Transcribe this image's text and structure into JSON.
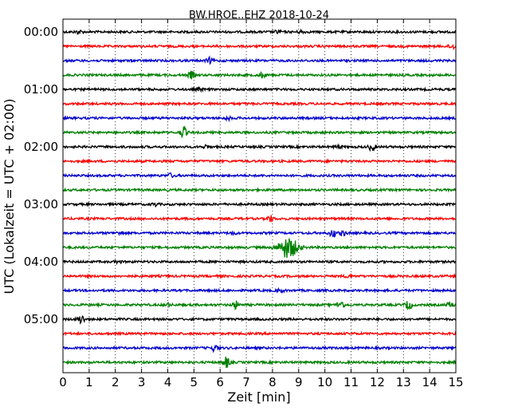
{
  "chart_data": {
    "type": "line",
    "title": "BW.HROE..EHZ 2018-10-24",
    "xlabel": "Zeit  [min]",
    "ylabel": "UTC (Lokalzeit = UTC + 02:00)",
    "xlim": [
      0,
      15
    ],
    "x_ticks": [
      "0",
      "1",
      "2",
      "3",
      "4",
      "5",
      "6",
      "7",
      "8",
      "9",
      "10",
      "11",
      "12",
      "13",
      "14",
      "15"
    ],
    "y_ticks": [
      "00:00",
      "01:00",
      "02:00",
      "03:00",
      "04:00",
      "05:00"
    ],
    "grid": "vertical dotted",
    "colors": [
      "#000000",
      "#ff0000",
      "#0000cc",
      "#008000"
    ],
    "traces": [
      {
        "start": "00:00",
        "color": "#000000",
        "events": [
          [
            0.6,
            1.0
          ],
          [
            8.2,
            0.8
          ],
          [
            9.1,
            0.8
          ]
        ]
      },
      {
        "start": "00:15",
        "color": "#ff0000",
        "events": [
          [
            14.85,
            1.5
          ]
        ]
      },
      {
        "start": "00:30",
        "color": "#0000cc",
        "events": [
          [
            5.6,
            1.5
          ]
        ]
      },
      {
        "start": "00:45",
        "color": "#008000",
        "events": [
          [
            4.9,
            2.0
          ],
          [
            7.6,
            1.5
          ]
        ]
      },
      {
        "start": "01:00",
        "color": "#000000",
        "events": [
          [
            5.2,
            0.8
          ]
        ]
      },
      {
        "start": "01:15",
        "color": "#ff0000",
        "events": []
      },
      {
        "start": "01:30",
        "color": "#0000cc",
        "events": [
          [
            6.3,
            0.8
          ]
        ]
      },
      {
        "start": "01:45",
        "color": "#008000",
        "events": [
          [
            4.6,
            3.0
          ]
        ]
      },
      {
        "start": "02:00",
        "color": "#000000",
        "events": [
          [
            5.5,
            1.0
          ],
          [
            10.5,
            0.8
          ],
          [
            11.8,
            2.0
          ]
        ]
      },
      {
        "start": "02:15",
        "color": "#ff0000",
        "events": []
      },
      {
        "start": "02:30",
        "color": "#0000cc",
        "events": [
          [
            4.1,
            1.0
          ]
        ]
      },
      {
        "start": "02:45",
        "color": "#008000",
        "events": []
      },
      {
        "start": "03:00",
        "color": "#000000",
        "events": [
          [
            3.5,
            0.8
          ]
        ]
      },
      {
        "start": "03:15",
        "color": "#ff0000",
        "events": [
          [
            7.9,
            1.8
          ]
        ]
      },
      {
        "start": "03:30",
        "color": "#0000cc",
        "events": [
          [
            2.2,
            0.8
          ],
          [
            6.5,
            0.8
          ],
          [
            10.3,
            2.2
          ],
          [
            10.7,
            1.2
          ]
        ]
      },
      {
        "start": "03:45",
        "color": "#008000",
        "events": [
          [
            8.6,
            6.0
          ]
        ]
      },
      {
        "start": "04:00",
        "color": "#000000",
        "events": [
          [
            2.1,
            0.7
          ]
        ]
      },
      {
        "start": "04:15",
        "color": "#ff0000",
        "events": [
          [
            10.9,
            0.8
          ]
        ]
      },
      {
        "start": "04:30",
        "color": "#0000cc",
        "events": [
          [
            8.3,
            0.8
          ]
        ]
      },
      {
        "start": "04:45",
        "color": "#008000",
        "events": [
          [
            4.0,
            0.8
          ],
          [
            6.6,
            2.0
          ],
          [
            10.6,
            2.5
          ],
          [
            13.2,
            2.5
          ],
          [
            14.8,
            1.5
          ]
        ]
      },
      {
        "start": "05:00",
        "color": "#000000",
        "events": [
          [
            0.7,
            2.5
          ]
        ]
      },
      {
        "start": "05:15",
        "color": "#ff0000",
        "events": []
      },
      {
        "start": "05:30",
        "color": "#0000cc",
        "events": [
          [
            5.8,
            1.8
          ]
        ]
      },
      {
        "start": "05:45",
        "color": "#008000",
        "events": [
          [
            6.25,
            3.0
          ]
        ]
      }
    ]
  }
}
